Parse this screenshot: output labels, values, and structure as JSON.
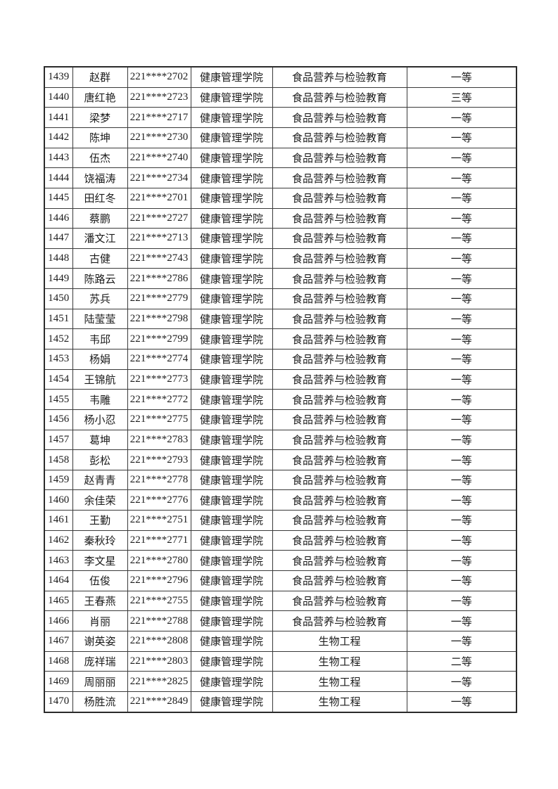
{
  "page": {
    "background": "#ffffff"
  },
  "colors": {
    "outer_border": "#2b2b2b",
    "grid_line": "#3a3a3a",
    "text": "#1c1c1c"
  },
  "table": {
    "column_keys": [
      "index",
      "name",
      "student_id",
      "college",
      "major",
      "award"
    ],
    "rows": [
      [
        "1439",
        "赵群",
        "221****2702",
        "健康管理学院",
        "食品营养与检验教育",
        "一等"
      ],
      [
        "1440",
        "唐红艳",
        "221****2723",
        "健康管理学院",
        "食品营养与检验教育",
        "三等"
      ],
      [
        "1441",
        "梁梦",
        "221****2717",
        "健康管理学院",
        "食品营养与检验教育",
        "一等"
      ],
      [
        "1442",
        "陈坤",
        "221****2730",
        "健康管理学院",
        "食品营养与检验教育",
        "一等"
      ],
      [
        "1443",
        "伍杰",
        "221****2740",
        "健康管理学院",
        "食品营养与检验教育",
        "一等"
      ],
      [
        "1444",
        "饶福涛",
        "221****2734",
        "健康管理学院",
        "食品营养与检验教育",
        "一等"
      ],
      [
        "1445",
        "田红冬",
        "221****2701",
        "健康管理学院",
        "食品营养与检验教育",
        "一等"
      ],
      [
        "1446",
        "蔡鹏",
        "221****2727",
        "健康管理学院",
        "食品营养与检验教育",
        "一等"
      ],
      [
        "1447",
        "潘文江",
        "221****2713",
        "健康管理学院",
        "食品营养与检验教育",
        "一等"
      ],
      [
        "1448",
        "古健",
        "221****2743",
        "健康管理学院",
        "食品营养与检验教育",
        "一等"
      ],
      [
        "1449",
        "陈路云",
        "221****2786",
        "健康管理学院",
        "食品营养与检验教育",
        "一等"
      ],
      [
        "1450",
        "苏兵",
        "221****2779",
        "健康管理学院",
        "食品营养与检验教育",
        "一等"
      ],
      [
        "1451",
        "陆莹莹",
        "221****2798",
        "健康管理学院",
        "食品营养与检验教育",
        "一等"
      ],
      [
        "1452",
        "韦邱",
        "221****2799",
        "健康管理学院",
        "食品营养与检验教育",
        "一等"
      ],
      [
        "1453",
        "杨娟",
        "221****2774",
        "健康管理学院",
        "食品营养与检验教育",
        "一等"
      ],
      [
        "1454",
        "王锦航",
        "221****2773",
        "健康管理学院",
        "食品营养与检验教育",
        "一等"
      ],
      [
        "1455",
        "韦雕",
        "221****2772",
        "健康管理学院",
        "食品营养与检验教育",
        "一等"
      ],
      [
        "1456",
        "杨小忍",
        "221****2775",
        "健康管理学院",
        "食品营养与检验教育",
        "一等"
      ],
      [
        "1457",
        "葛坤",
        "221****2783",
        "健康管理学院",
        "食品营养与检验教育",
        "一等"
      ],
      [
        "1458",
        "彭松",
        "221****2793",
        "健康管理学院",
        "食品营养与检验教育",
        "一等"
      ],
      [
        "1459",
        "赵青青",
        "221****2778",
        "健康管理学院",
        "食品营养与检验教育",
        "一等"
      ],
      [
        "1460",
        "余佳荣",
        "221****2776",
        "健康管理学院",
        "食品营养与检验教育",
        "一等"
      ],
      [
        "1461",
        "王勤",
        "221****2751",
        "健康管理学院",
        "食品营养与检验教育",
        "一等"
      ],
      [
        "1462",
        "秦秋玲",
        "221****2771",
        "健康管理学院",
        "食品营养与检验教育",
        "一等"
      ],
      [
        "1463",
        "李文星",
        "221****2780",
        "健康管理学院",
        "食品营养与检验教育",
        "一等"
      ],
      [
        "1464",
        "伍俊",
        "221****2796",
        "健康管理学院",
        "食品营养与检验教育",
        "一等"
      ],
      [
        "1465",
        "王春燕",
        "221****2755",
        "健康管理学院",
        "食品营养与检验教育",
        "一等"
      ],
      [
        "1466",
        "肖丽",
        "221****2788",
        "健康管理学院",
        "食品营养与检验教育",
        "一等"
      ],
      [
        "1467",
        "谢英姿",
        "221****2808",
        "健康管理学院",
        "生物工程",
        "一等"
      ],
      [
        "1468",
        "庞祥瑞",
        "221****2803",
        "健康管理学院",
        "生物工程",
        "二等"
      ],
      [
        "1469",
        "周丽丽",
        "221****2825",
        "健康管理学院",
        "生物工程",
        "一等"
      ],
      [
        "1470",
        "杨胜流",
        "221****2849",
        "健康管理学院",
        "生物工程",
        "一等"
      ]
    ]
  }
}
